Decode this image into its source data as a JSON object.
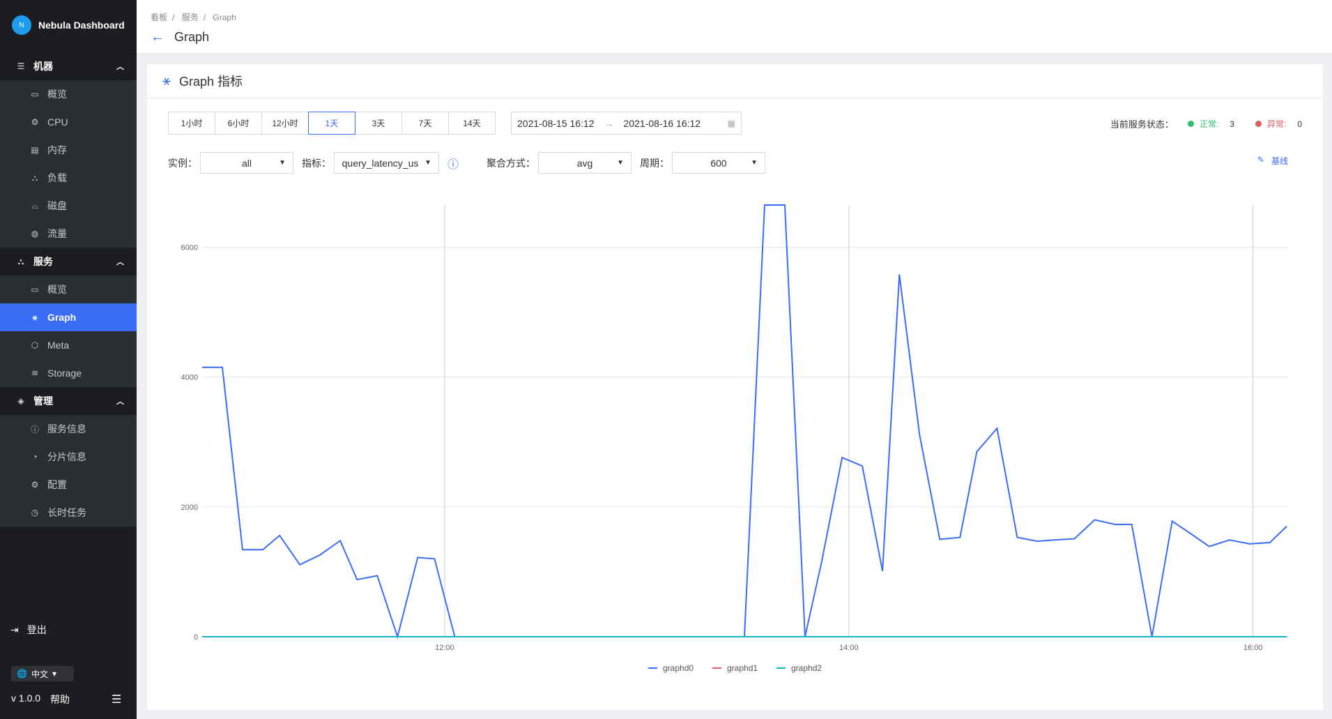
{
  "app": {
    "title": "Nebula Dashboard",
    "logo_letter": "N"
  },
  "sidebar": {
    "groups": [
      {
        "label": "机器",
        "icon": "server-icon",
        "items": [
          {
            "label": "概览",
            "icon": "chart-icon"
          },
          {
            "label": "CPU",
            "icon": "cpu-icon"
          },
          {
            "label": "内存",
            "icon": "memory-icon"
          },
          {
            "label": "负载",
            "icon": "load-icon"
          },
          {
            "label": "磁盘",
            "icon": "disk-icon"
          },
          {
            "label": "流量",
            "icon": "globe-icon"
          }
        ]
      },
      {
        "label": "服务",
        "icon": "sitemap-icon",
        "items": [
          {
            "label": "概览",
            "icon": "chart-icon"
          },
          {
            "label": "Graph",
            "icon": "graph-icon",
            "active": true
          },
          {
            "label": "Meta",
            "icon": "meta-icon"
          },
          {
            "label": "Storage",
            "icon": "storage-icon"
          }
        ]
      },
      {
        "label": "管理",
        "icon": "layers-icon",
        "items": [
          {
            "label": "服务信息",
            "icon": "info-icon"
          },
          {
            "label": "分片信息",
            "icon": "pie-icon"
          },
          {
            "label": "配置",
            "icon": "gear-icon"
          },
          {
            "label": "长时任务",
            "icon": "clock-icon"
          }
        ]
      }
    ],
    "logout": "登出",
    "language": "中文",
    "version": "v 1.0.0",
    "help": "帮助"
  },
  "header": {
    "breadcrumb": [
      "看板",
      "服务",
      "Graph"
    ],
    "title": "Graph"
  },
  "card": {
    "title": "Graph 指标",
    "time_buttons": [
      "1小时",
      "6小时",
      "12小时",
      "1天",
      "3天",
      "7天",
      "14天"
    ],
    "active_time": "1天",
    "range_start": "2021-08-15 16:12",
    "range_end": "2021-08-16 16:12",
    "status_label": "当前服务状态：",
    "normal_label": "正常:",
    "normal_count": "3",
    "abnormal_label": "异常:",
    "abnormal_count": "0",
    "instance_label": "实例：",
    "instance_value": "all",
    "metric_label": "指标：",
    "metric_value": "query_latency_us",
    "agg_label": "聚合方式：",
    "agg_value": "avg",
    "period_label": "周期：",
    "period_value": "600",
    "baseline": "基线"
  },
  "colors": {
    "accent": "#3a6cf6",
    "normal": "#2fbf71",
    "abnormal": "#e05a64"
  },
  "chart_data": {
    "type": "line",
    "xlim": [
      "10:48",
      "16:10"
    ],
    "ylim": [
      0,
      6650
    ],
    "grid": true,
    "legend": "bottom",
    "xticks": [
      "12:00",
      "14:00",
      "16:00"
    ],
    "yticks": [
      0,
      2000,
      4000,
      6000
    ],
    "x": [
      "10:48",
      "10:54",
      "11:00",
      "11:06",
      "11:11",
      "11:17",
      "11:23",
      "11:29",
      "11:34",
      "11:40",
      "11:46",
      "11:52",
      "11:57",
      "12:03",
      "12:09",
      "12:15",
      "12:20",
      "12:26",
      "12:32",
      "12:38",
      "12:43",
      "12:49",
      "12:55",
      "13:01",
      "13:06",
      "13:12",
      "13:18",
      "13:24",
      "13:29",
      "13:35",
      "13:41",
      "13:47",
      "13:52",
      "13:58",
      "14:04",
      "14:10",
      "14:15",
      "14:21",
      "14:27",
      "14:33",
      "14:38",
      "14:44",
      "14:50",
      "14:56",
      "15:01",
      "15:07",
      "15:13",
      "15:19",
      "15:24",
      "15:30",
      "15:36",
      "15:42",
      "15:47",
      "15:53",
      "15:59",
      "16:05",
      "16:10"
    ],
    "series": [
      {
        "name": "graphd0",
        "color": "#3a6cf6",
        "values": [
          4150,
          4150,
          1340,
          1340,
          1560,
          1110,
          1260,
          1480,
          880,
          940,
          0,
          1220,
          1200,
          0,
          0,
          0,
          0,
          0,
          0,
          0,
          0,
          0,
          0,
          0,
          0,
          0,
          0,
          0,
          0,
          6650,
          6650,
          0,
          1170,
          2760,
          2630,
          1010,
          5580,
          3110,
          1500,
          1530,
          2850,
          3210,
          1530,
          1470,
          1490,
          1510,
          1800,
          1730,
          1730,
          0,
          1780,
          1570,
          1390,
          1490,
          1430,
          1450,
          1700
        ]
      },
      {
        "name": "graphd1",
        "color": "#e05a64",
        "values": [
          0,
          0,
          0,
          0,
          0,
          0,
          0,
          0,
          0,
          0,
          0,
          0,
          0,
          0,
          0,
          0,
          0,
          0,
          0,
          0,
          0,
          0,
          0,
          0,
          0,
          0,
          0,
          0,
          0,
          0,
          0,
          0,
          0,
          0,
          0,
          0,
          0,
          0,
          0,
          0,
          0,
          0,
          0,
          0,
          0,
          0,
          0,
          0,
          0,
          0,
          0,
          0,
          0,
          0,
          0,
          0,
          0
        ]
      },
      {
        "name": "graphd2",
        "color": "#13b5c8",
        "values": [
          0,
          0,
          0,
          0,
          0,
          0,
          0,
          0,
          0,
          0,
          0,
          0,
          0,
          0,
          0,
          0,
          0,
          0,
          0,
          0,
          0,
          0,
          0,
          0,
          0,
          0,
          0,
          0,
          0,
          0,
          0,
          0,
          0,
          0,
          0,
          0,
          0,
          0,
          0,
          0,
          0,
          0,
          0,
          0,
          0,
          0,
          0,
          0,
          0,
          0,
          0,
          0,
          0,
          0,
          0,
          0,
          0
        ]
      }
    ]
  }
}
